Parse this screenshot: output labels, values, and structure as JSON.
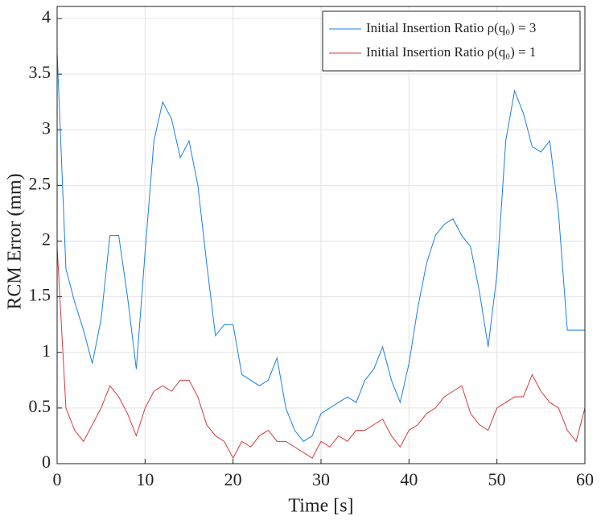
{
  "chart_data": {
    "type": "line",
    "xlabel": "Time  [s]",
    "ylabel": "RCM Error (mm)",
    "x": [
      0,
      1,
      2,
      3,
      4,
      5,
      6,
      7,
      8,
      9,
      10,
      11,
      12,
      13,
      14,
      15,
      16,
      17,
      18,
      19,
      20,
      21,
      22,
      23,
      24,
      25,
      26,
      27,
      28,
      29,
      30,
      31,
      32,
      33,
      34,
      35,
      36,
      37,
      38,
      39,
      40,
      41,
      42,
      43,
      44,
      45,
      46,
      47,
      48,
      49,
      50,
      51,
      52,
      53,
      54,
      55,
      56,
      57,
      58,
      59,
      60
    ],
    "series": [
      {
        "name": "Initial Insertion Ratio ρ(q₀) = 3",
        "color": "#1a7fe8",
        "values": [
          3.7,
          1.75,
          1.45,
          1.2,
          0.9,
          1.3,
          2.05,
          2.05,
          1.5,
          0.85,
          1.9,
          2.9,
          3.25,
          3.1,
          2.75,
          2.9,
          2.5,
          1.8,
          1.15,
          1.25,
          1.25,
          0.8,
          0.75,
          0.7,
          0.75,
          0.95,
          0.5,
          0.3,
          0.2,
          0.25,
          0.45,
          0.5,
          0.55,
          0.6,
          0.55,
          0.75,
          0.85,
          1.05,
          0.75,
          0.55,
          0.9,
          1.4,
          1.8,
          2.05,
          2.15,
          2.2,
          2.05,
          1.95,
          1.55,
          1.05,
          1.7,
          2.9,
          3.35,
          3.15,
          2.85,
          2.8,
          2.9,
          2.25,
          1.2,
          1.2,
          1.2
        ]
      },
      {
        "name": "Initial Insertion Ratio ρ(q₀) = 1",
        "color": "#d83a3a",
        "values": [
          1.95,
          0.5,
          0.3,
          0.2,
          0.35,
          0.5,
          0.7,
          0.6,
          0.45,
          0.25,
          0.5,
          0.65,
          0.7,
          0.65,
          0.75,
          0.75,
          0.6,
          0.35,
          0.25,
          0.2,
          0.05,
          0.2,
          0.15,
          0.25,
          0.3,
          0.2,
          0.2,
          0.15,
          0.1,
          0.05,
          0.2,
          0.15,
          0.25,
          0.2,
          0.3,
          0.3,
          0.35,
          0.4,
          0.25,
          0.15,
          0.3,
          0.35,
          0.45,
          0.5,
          0.6,
          0.65,
          0.7,
          0.45,
          0.35,
          0.3,
          0.5,
          0.55,
          0.6,
          0.6,
          0.8,
          0.65,
          0.55,
          0.5,
          0.3,
          0.2,
          0.5
        ]
      }
    ],
    "xlim": [
      0,
      60
    ],
    "xticks": [
      0,
      10,
      20,
      30,
      40,
      50,
      60
    ],
    "ylim": [
      0,
      4
    ],
    "yticks": [
      0,
      0.5,
      1,
      1.5,
      2,
      2.5,
      3,
      3.5,
      4
    ],
    "grid": true,
    "legend": "upper right"
  }
}
